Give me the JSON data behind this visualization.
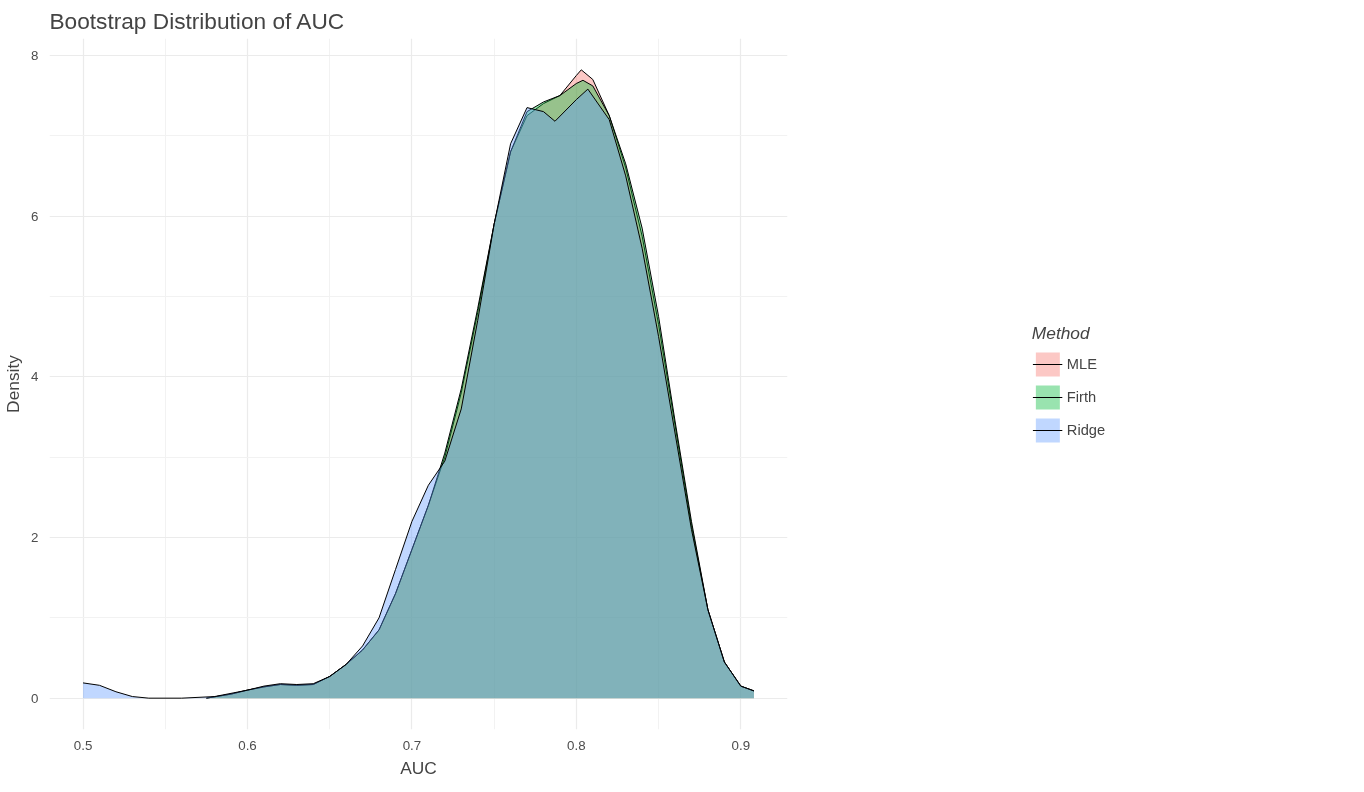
{
  "chart_data": {
    "type": "area",
    "title": "Bootstrap Distribution of AUC",
    "xlabel": "AUC",
    "ylabel": "Density",
    "legend_title": "Method",
    "legend": "right",
    "grid": true,
    "xlim": [
      0.4796,
      0.9284
    ],
    "ylim": [
      -0.39,
      8.21
    ],
    "xticks": [
      0.5,
      {
        "value": 0.55,
        "label": null
      },
      0.6,
      {
        "value": 0.65,
        "label": null
      },
      0.7,
      {
        "value": 0.75,
        "label": null
      },
      0.8,
      {
        "value": 0.85,
        "label": null
      },
      0.9
    ],
    "yticks": [
      0,
      {
        "value": 1,
        "label": null
      },
      2,
      {
        "value": 3,
        "label": null
      },
      4,
      {
        "value": 5,
        "label": null
      },
      6,
      {
        "value": 7,
        "label": null
      },
      8
    ],
    "series": [
      {
        "name": "MLE",
        "color": "#f8766d",
        "x": [
          0.575,
          0.59,
          0.6,
          0.61,
          0.62,
          0.63,
          0.64,
          0.65,
          0.66,
          0.67,
          0.68,
          0.69,
          0.7,
          0.71,
          0.72,
          0.73,
          0.74,
          0.75,
          0.76,
          0.77,
          0.78,
          0.79,
          0.8,
          0.803,
          0.81,
          0.82,
          0.83,
          0.84,
          0.85,
          0.86,
          0.87,
          0.88,
          0.89,
          0.9,
          0.908
        ],
        "values": [
          0.0,
          0.05,
          0.1,
          0.14,
          0.17,
          0.16,
          0.17,
          0.27,
          0.42,
          0.6,
          0.85,
          1.3,
          1.85,
          2.4,
          3.0,
          3.8,
          4.8,
          5.9,
          6.8,
          7.25,
          7.4,
          7.5,
          7.75,
          7.82,
          7.7,
          7.25,
          6.6,
          5.75,
          4.65,
          3.4,
          2.15,
          1.1,
          0.45,
          0.15,
          0.09
        ]
      },
      {
        "name": "Firth",
        "color": "#00ba38",
        "x": [
          0.575,
          0.59,
          0.6,
          0.61,
          0.62,
          0.63,
          0.64,
          0.65,
          0.66,
          0.67,
          0.68,
          0.69,
          0.7,
          0.71,
          0.72,
          0.73,
          0.74,
          0.75,
          0.76,
          0.77,
          0.78,
          0.79,
          0.8,
          0.804,
          0.81,
          0.82,
          0.83,
          0.84,
          0.85,
          0.86,
          0.87,
          0.88,
          0.89,
          0.9,
          0.908
        ],
        "values": [
          0.0,
          0.05,
          0.1,
          0.14,
          0.17,
          0.16,
          0.17,
          0.27,
          0.42,
          0.6,
          0.85,
          1.3,
          1.85,
          2.4,
          3.05,
          3.85,
          4.85,
          5.9,
          6.8,
          7.3,
          7.42,
          7.5,
          7.65,
          7.69,
          7.62,
          7.25,
          6.65,
          5.85,
          4.75,
          3.45,
          2.2,
          1.1,
          0.45,
          0.15,
          0.09
        ]
      },
      {
        "name": "Ridge",
        "color": "#619cff",
        "x": [
          0.5,
          0.51,
          0.52,
          0.53,
          0.54,
          0.56,
          0.58,
          0.6,
          0.61,
          0.62,
          0.63,
          0.64,
          0.65,
          0.66,
          0.67,
          0.68,
          0.69,
          0.7,
          0.71,
          0.72,
          0.73,
          0.74,
          0.75,
          0.76,
          0.77,
          0.78,
          0.787,
          0.8,
          0.807,
          0.82,
          0.83,
          0.84,
          0.85,
          0.86,
          0.87,
          0.88,
          0.89,
          0.9,
          0.908
        ],
        "values": [
          0.19,
          0.16,
          0.08,
          0.02,
          0.0,
          0.0,
          0.02,
          0.1,
          0.15,
          0.18,
          0.17,
          0.18,
          0.27,
          0.42,
          0.65,
          1.0,
          1.6,
          2.2,
          2.65,
          2.95,
          3.6,
          4.7,
          5.9,
          6.9,
          7.35,
          7.3,
          7.18,
          7.45,
          7.58,
          7.2,
          6.5,
          5.6,
          4.5,
          3.3,
          2.1,
          1.1,
          0.45,
          0.15,
          0.09
        ]
      }
    ]
  }
}
